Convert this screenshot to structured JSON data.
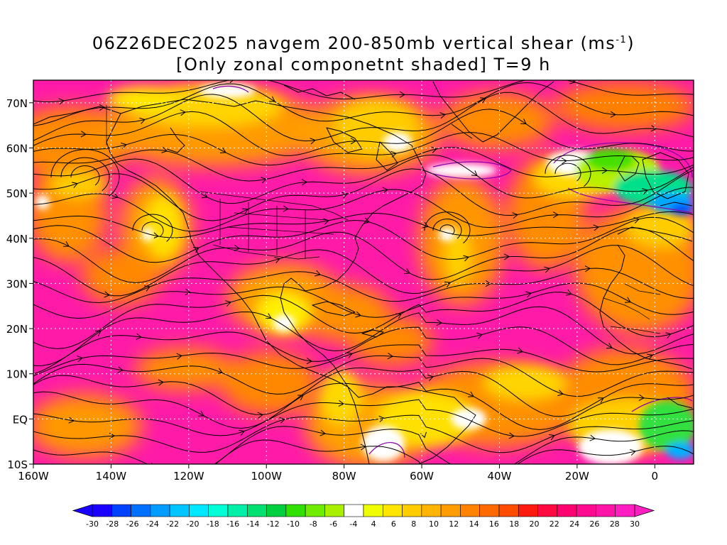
{
  "title": {
    "line1_prefix": "06Z26DEC2025 navgem 200-850mb vertical shear (ms",
    "line1_sup": "-1",
    "line1_suffix": ")",
    "line2": "[Only zonal componetnt shaded] T=9 h"
  },
  "map": {
    "lon_range": [
      -160,
      10
    ],
    "lat_range": [
      -10,
      75
    ],
    "lon_ticks": [
      {
        "value": -160,
        "label": "160W"
      },
      {
        "value": -140,
        "label": "140W"
      },
      {
        "value": -120,
        "label": "120W"
      },
      {
        "value": -100,
        "label": "100W"
      },
      {
        "value": -80,
        "label": "80W"
      },
      {
        "value": -60,
        "label": "60W"
      },
      {
        "value": -40,
        "label": "40W"
      },
      {
        "value": -20,
        "label": "20W"
      },
      {
        "value": 0,
        "label": "0"
      }
    ],
    "lat_ticks": [
      {
        "value": 70,
        "label": "70N"
      },
      {
        "value": 60,
        "label": "60N"
      },
      {
        "value": 50,
        "label": "50N"
      },
      {
        "value": 40,
        "label": "40N"
      },
      {
        "value": 30,
        "label": "30N"
      },
      {
        "value": 20,
        "label": "20N"
      },
      {
        "value": 10,
        "label": "10N"
      },
      {
        "value": 0,
        "label": "EQ"
      },
      {
        "value": -10,
        "label": "10S"
      }
    ],
    "gridlines": "dotted"
  },
  "colorbar": {
    "values": [
      -30,
      -28,
      -26,
      -24,
      -22,
      -20,
      -18,
      -16,
      -14,
      -12,
      -10,
      -8,
      -6,
      -4,
      4,
      6,
      8,
      10,
      12,
      14,
      16,
      18,
      20,
      22,
      24,
      26,
      28,
      30
    ],
    "labels": [
      "-30",
      "-28",
      "-26",
      "-24",
      "-22",
      "-20",
      "-18",
      "-16",
      "-14",
      "-12",
      "-10",
      "-8",
      "-6",
      "-4",
      "4",
      "6",
      "8",
      "10",
      "12",
      "14",
      "16",
      "18",
      "20",
      "22",
      "24",
      "26",
      "28",
      "30"
    ],
    "colors": [
      "#1a00ff",
      "#0040ff",
      "#0070ff",
      "#009cff",
      "#00c4ff",
      "#00e8ff",
      "#00ffd6",
      "#00f0a8",
      "#00e070",
      "#00d040",
      "#30e000",
      "#70ec00",
      "#a8f000",
      "#ffffff",
      "#f0ff00",
      "#ffe600",
      "#ffcc00",
      "#ffb400",
      "#ff9c00",
      "#ff8200",
      "#ff6a00",
      "#ff4c00",
      "#ff1a10",
      "#ff0a40",
      "#ff0070",
      "#ff0a90",
      "#ff14a8",
      "#ff1ec0"
    ],
    "low_color": "#1a00ff",
    "high_color": "#ff1ec0"
  },
  "colors": {
    "base": "#ff1aa8",
    "contour": "#8800aa",
    "streamline": "#000000",
    "coast": "#000000"
  }
}
